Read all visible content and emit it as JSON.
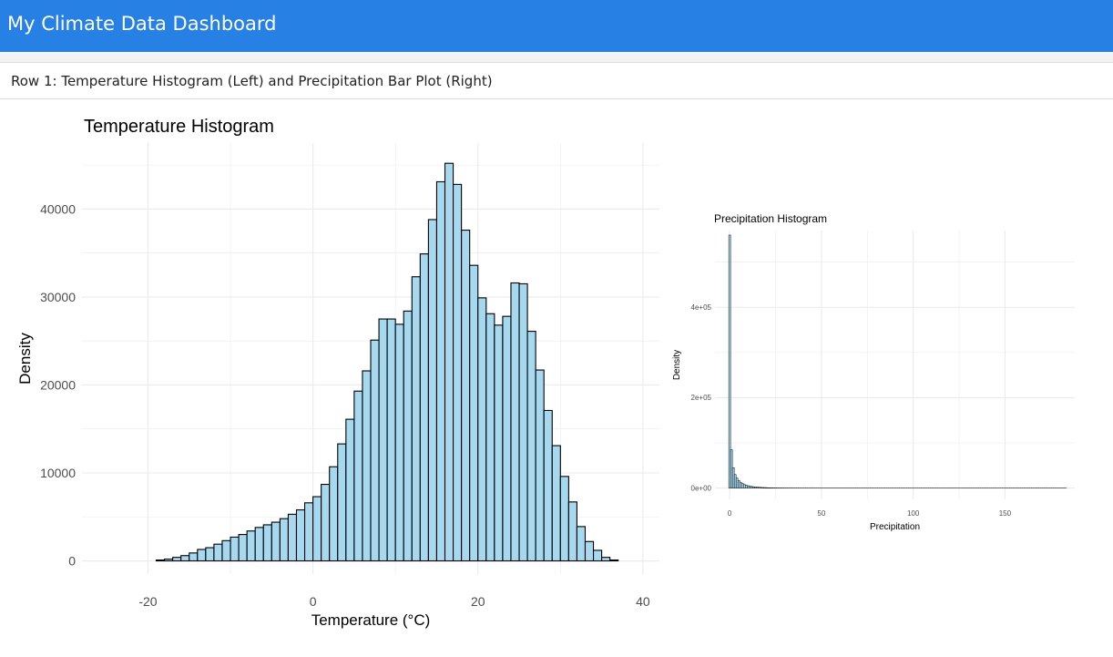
{
  "navbar": {
    "title": "My Climate Data Dashboard"
  },
  "row1": {
    "title": "Row 1: Temperature Histogram (Left) and Precipitation Bar Plot (Right)"
  },
  "colors": {
    "navbar": "#2780e3",
    "bar_fill": "#a6d9ef",
    "bar_stroke": "#000000",
    "grid": "#ebebeb"
  },
  "chart_data": [
    {
      "type": "bar",
      "subtype": "histogram",
      "title": "Temperature Histogram",
      "xlabel": "Temperature (°C)",
      "ylabel": "Density",
      "xlim": [
        -28,
        42
      ],
      "ylim": [
        -1500,
        47500
      ],
      "xticks": [
        -20,
        0,
        20,
        40
      ],
      "yticks": [
        0,
        10000,
        20000,
        30000,
        40000
      ],
      "grid": true,
      "bin_width": 1,
      "x_start": -25,
      "values": [
        0,
        0,
        0,
        0,
        0,
        0,
        100,
        200,
        400,
        600,
        900,
        1300,
        1500,
        1900,
        2300,
        2700,
        3000,
        3400,
        3800,
        4100,
        4400,
        4800,
        5300,
        5800,
        6600,
        7300,
        8700,
        10700,
        13300,
        16100,
        19300,
        21600,
        25100,
        27500,
        27500,
        26900,
        28400,
        32300,
        34900,
        38800,
        43100,
        45200,
        42800,
        37600,
        33600,
        29900,
        28100,
        26800,
        27800,
        31600,
        31500,
        26100,
        21700,
        17100,
        13100,
        9600,
        6700,
        3900,
        2200,
        1200,
        400,
        100
      ]
    },
    {
      "type": "bar",
      "subtype": "histogram",
      "title": "Precipitation Histogram",
      "xlabel": "Precipitation",
      "ylabel": "Density",
      "xlim": [
        -8,
        188
      ],
      "ylim": [
        -25000,
        570000
      ],
      "xticks": [
        0,
        50,
        100,
        150
      ],
      "yticks": [
        0,
        200000,
        400000
      ],
      "ytick_labels": [
        "0e+00",
        "2e+05",
        "4e+05"
      ],
      "grid": true,
      "bin_width": 1,
      "x_start": -0.5,
      "values": [
        560000,
        85000,
        45000,
        30000,
        22000,
        17000,
        13000,
        10000,
        8000,
        6500,
        5200,
        4300,
        3600,
        3000,
        2500,
        2100,
        1800,
        1500,
        1300,
        1100,
        950,
        800,
        700,
        600,
        520,
        450,
        390,
        340,
        300,
        260,
        230,
        200,
        180,
        160,
        140,
        120,
        110,
        100,
        90,
        80,
        70,
        60,
        55,
        50,
        45,
        40,
        36,
        32,
        29,
        26,
        24,
        22,
        20,
        18,
        16,
        14,
        12,
        11,
        10,
        9,
        8,
        7,
        7,
        6,
        6,
        5,
        5,
        4,
        4,
        4,
        3,
        3,
        3,
        3,
        2,
        2,
        2,
        2,
        2,
        2,
        2,
        1,
        1,
        1,
        1,
        1,
        1,
        1,
        1,
        1,
        1,
        1,
        1,
        1,
        1,
        1,
        1,
        1,
        1,
        1,
        1,
        1,
        1,
        1,
        1,
        1,
        1,
        1,
        1,
        1,
        1,
        1,
        1,
        1,
        1,
        1,
        1,
        1,
        1,
        1,
        1,
        1,
        1,
        1,
        1,
        1,
        1,
        1,
        1,
        1,
        1,
        1,
        1,
        1,
        1,
        1,
        1,
        1,
        1,
        1,
        1,
        1,
        1,
        1,
        1,
        1,
        1,
        1,
        1,
        1,
        1,
        1,
        1,
        1,
        1,
        1,
        1,
        1,
        1,
        1,
        1,
        1,
        1,
        1,
        1,
        1,
        1,
        1,
        1,
        1,
        1,
        1,
        1,
        1,
        1,
        1,
        1,
        1,
        1,
        1,
        1,
        1,
        1,
        1
      ]
    }
  ]
}
